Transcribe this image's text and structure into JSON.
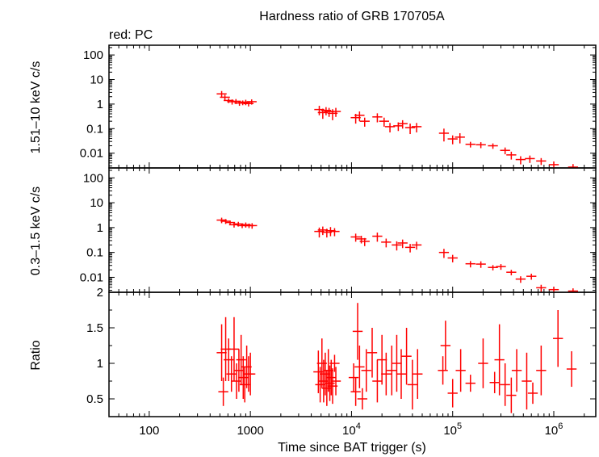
{
  "colors": {
    "data": "#ff0000",
    "axis": "#000000",
    "background": "#ffffff"
  },
  "chart_data": {
    "type": "scatter",
    "title": "Hardness ratio of GRB 170705A",
    "legend_note": "red: PC",
    "xlabel": "Time since BAT trigger (s)",
    "xscale": "log",
    "xlim": [
      40,
      2600000
    ],
    "x_ticks": [
      {
        "value": 100,
        "base": "100",
        "exp": ""
      },
      {
        "value": 1000,
        "base": "1000",
        "exp": ""
      },
      {
        "value": 10000,
        "base": "10",
        "exp": "4"
      },
      {
        "value": 100000,
        "base": "10",
        "exp": "5"
      },
      {
        "value": 1000000,
        "base": "10",
        "exp": "6"
      }
    ],
    "panels": [
      {
        "ylabel": "1.51–10 keV c/s",
        "yscale": "log",
        "ylim": [
          0.0025,
          250
        ],
        "y_ticks": [
          "0.01",
          "0.1",
          "1",
          "10",
          "100"
        ],
        "y_tick_values": [
          0.01,
          0.1,
          1,
          10,
          100
        ],
        "points": [
          [
            520,
            2.6,
            0.8
          ],
          [
            560,
            1.9,
            0.5
          ],
          [
            610,
            1.4,
            0.3
          ],
          [
            660,
            1.25,
            0.3
          ],
          [
            720,
            1.3,
            0.3
          ],
          [
            780,
            1.1,
            0.25
          ],
          [
            840,
            1.15,
            0.25
          ],
          [
            900,
            1.2,
            0.3
          ],
          [
            960,
            1.05,
            0.25
          ],
          [
            1030,
            1.25,
            0.3
          ],
          [
            4800,
            0.6,
            0.25
          ],
          [
            5200,
            0.45,
            0.2
          ],
          [
            5600,
            0.55,
            0.2
          ],
          [
            6000,
            0.5,
            0.2
          ],
          [
            6500,
            0.42,
            0.2
          ],
          [
            7000,
            0.5,
            0.2
          ],
          [
            11000,
            0.28,
            0.12
          ],
          [
            12000,
            0.35,
            0.15
          ],
          [
            13500,
            0.2,
            0.08
          ],
          [
            18000,
            0.3,
            0.12
          ],
          [
            21000,
            0.2,
            0.08
          ],
          [
            24000,
            0.12,
            0.05
          ],
          [
            29000,
            0.13,
            0.05
          ],
          [
            32000,
            0.16,
            0.06
          ],
          [
            38000,
            0.11,
            0.05
          ],
          [
            44000,
            0.12,
            0.05
          ],
          [
            82000,
            0.065,
            0.035
          ],
          [
            100000,
            0.038,
            0.015
          ],
          [
            118000,
            0.045,
            0.02
          ],
          [
            150000,
            0.023,
            0.006
          ],
          [
            190000,
            0.022,
            0.006
          ],
          [
            250000,
            0.02,
            0.005
          ],
          [
            330000,
            0.013,
            0.004
          ],
          [
            380000,
            0.0085,
            0.003
          ],
          [
            470000,
            0.0055,
            0.002
          ],
          [
            580000,
            0.006,
            0.002
          ],
          [
            750000,
            0.0048,
            0.0015
          ],
          [
            1000000,
            0.0034,
            0.0012
          ],
          [
            1550000,
            0.0027,
            0.0009
          ]
        ]
      },
      {
        "ylabel": "0.3–1.5 keV c/s",
        "yscale": "log",
        "ylim": [
          0.0025,
          250
        ],
        "y_ticks": [
          "0.01",
          "0.1",
          "1",
          "10",
          "100"
        ],
        "y_tick_values": [
          0.01,
          0.1,
          1,
          10,
          100
        ],
        "points": [
          [
            520,
            2.0,
            0.5
          ],
          [
            570,
            1.8,
            0.4
          ],
          [
            630,
            1.6,
            0.3
          ],
          [
            690,
            1.3,
            0.3
          ],
          [
            760,
            1.4,
            0.3
          ],
          [
            830,
            1.2,
            0.25
          ],
          [
            900,
            1.3,
            0.3
          ],
          [
            970,
            1.2,
            0.25
          ],
          [
            1040,
            1.2,
            0.3
          ],
          [
            4800,
            0.7,
            0.3
          ],
          [
            5200,
            0.8,
            0.3
          ],
          [
            5700,
            0.65,
            0.25
          ],
          [
            6200,
            0.75,
            0.3
          ],
          [
            6800,
            0.7,
            0.25
          ],
          [
            11000,
            0.42,
            0.15
          ],
          [
            12500,
            0.35,
            0.12
          ],
          [
            13500,
            0.28,
            0.1
          ],
          [
            18000,
            0.45,
            0.18
          ],
          [
            22000,
            0.26,
            0.1
          ],
          [
            28000,
            0.2,
            0.08
          ],
          [
            32000,
            0.24,
            0.09
          ],
          [
            38000,
            0.16,
            0.06
          ],
          [
            44000,
            0.2,
            0.07
          ],
          [
            82000,
            0.1,
            0.04
          ],
          [
            100000,
            0.06,
            0.02
          ],
          [
            150000,
            0.035,
            0.01
          ],
          [
            190000,
            0.034,
            0.01
          ],
          [
            250000,
            0.025,
            0.006
          ],
          [
            300000,
            0.027,
            0.007
          ],
          [
            380000,
            0.016,
            0.004
          ],
          [
            470000,
            0.0085,
            0.0025
          ],
          [
            600000,
            0.011,
            0.003
          ],
          [
            750000,
            0.0038,
            0.0012
          ],
          [
            1000000,
            0.0032,
            0.0009
          ],
          [
            1550000,
            0.0028,
            0.0008
          ]
        ]
      },
      {
        "ylabel": "Ratio",
        "yscale": "linear",
        "ylim": [
          0.25,
          2.0
        ],
        "y_ticks": [
          "0.5",
          "1",
          "1.5",
          "2"
        ],
        "y_tick_values": [
          0.5,
          1.0,
          1.5,
          2.0
        ],
        "points": [
          [
            520,
            1.15,
            0.4
          ],
          [
            540,
            0.6,
            0.2
          ],
          [
            570,
            1.2,
            0.45
          ],
          [
            610,
            1.05,
            0.3
          ],
          [
            650,
            0.85,
            0.25
          ],
          [
            690,
            1.2,
            0.45
          ],
          [
            730,
            0.75,
            0.25
          ],
          [
            770,
            0.9,
            0.3
          ],
          [
            810,
            1.05,
            0.35
          ],
          [
            850,
            0.8,
            0.3
          ],
          [
            880,
            0.7,
            0.25
          ],
          [
            920,
            0.95,
            0.3
          ],
          [
            960,
            0.85,
            0.25
          ],
          [
            1000,
            0.85,
            0.3
          ],
          [
            4700,
            0.88,
            0.3
          ],
          [
            4900,
            0.7,
            0.25
          ],
          [
            5100,
            1.0,
            0.35
          ],
          [
            5300,
            0.75,
            0.3
          ],
          [
            5500,
            0.85,
            0.3
          ],
          [
            5700,
            0.65,
            0.25
          ],
          [
            5900,
            0.9,
            0.3
          ],
          [
            6100,
            0.72,
            0.25
          ],
          [
            6300,
            0.8,
            0.25
          ],
          [
            6500,
            0.68,
            0.25
          ],
          [
            6800,
            1.0,
            0.12
          ],
          [
            7000,
            0.75,
            0.2
          ],
          [
            10500,
            0.8,
            0.2
          ],
          [
            11000,
            0.6,
            0.2
          ],
          [
            11500,
            1.45,
            0.4
          ],
          [
            12000,
            0.95,
            0.3
          ],
          [
            12800,
            0.5,
            0.15
          ],
          [
            14000,
            0.9,
            0.3
          ],
          [
            16000,
            1.15,
            0.35
          ],
          [
            18000,
            0.75,
            0.3
          ],
          [
            20000,
            1.05,
            0.35
          ],
          [
            22000,
            0.85,
            0.3
          ],
          [
            25000,
            0.9,
            0.35
          ],
          [
            28000,
            1.0,
            0.4
          ],
          [
            31000,
            0.85,
            0.35
          ],
          [
            35000,
            1.1,
            0.4
          ],
          [
            40000,
            0.7,
            0.35
          ],
          [
            45000,
            0.85,
            0.35
          ],
          [
            80000,
            0.9,
            0.2
          ],
          [
            85000,
            1.25,
            0.35
          ],
          [
            100000,
            0.58,
            0.2
          ],
          [
            120000,
            0.9,
            0.3
          ],
          [
            150000,
            0.72,
            0.12
          ],
          [
            200000,
            1.0,
            0.35
          ],
          [
            260000,
            0.73,
            0.15
          ],
          [
            290000,
            1.05,
            0.5
          ],
          [
            330000,
            0.7,
            0.3
          ],
          [
            380000,
            0.55,
            0.25
          ],
          [
            430000,
            0.9,
            0.3
          ],
          [
            540000,
            0.75,
            0.4
          ],
          [
            620000,
            0.58,
            0.15
          ],
          [
            750000,
            0.9,
            0.35
          ],
          [
            1100000,
            1.35,
            0.4
          ],
          [
            1500000,
            0.92,
            0.25
          ]
        ]
      }
    ]
  }
}
